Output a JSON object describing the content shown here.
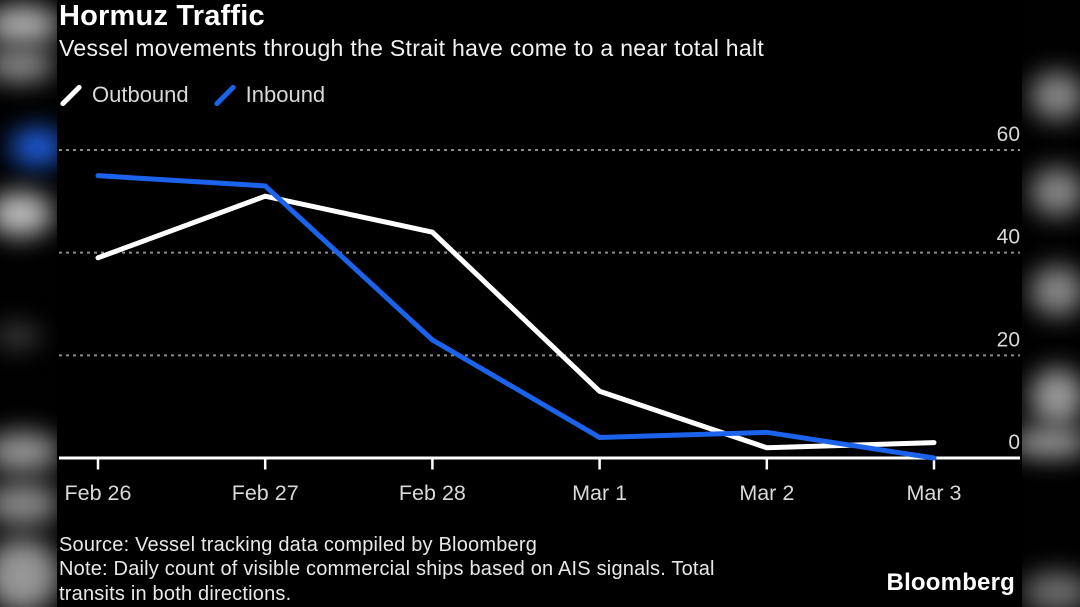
{
  "header": {
    "title": "Hormuz Traffic",
    "subtitle": "Vessel movements through the Strait have come to a near total halt"
  },
  "chart_data": {
    "type": "line",
    "categories": [
      "Feb 26",
      "Feb 27",
      "Feb 28",
      "Mar 1",
      "Mar 2",
      "Mar 3"
    ],
    "series": [
      {
        "name": "Outbound",
        "color": "#ffffff",
        "values": [
          39,
          51,
          44,
          13,
          2,
          3
        ]
      },
      {
        "name": "Inbound",
        "color": "#1b63ea",
        "values": [
          55,
          53,
          23,
          4,
          5,
          0
        ]
      }
    ],
    "ylim": [
      0,
      60
    ],
    "y_ticks": [
      0,
      20,
      40,
      60
    ],
    "grid": "horizontal-dashed",
    "grid_color": "#8c8c8c",
    "axis_color": "#ffffff",
    "tick_label_color": "#d9d9d9",
    "legend_position": "top-left",
    "background_color": "#000000"
  },
  "footer": {
    "source": "Source: Vessel tracking data compiled by Bloomberg",
    "note_lines": [
      "Note: Daily count of visible commercial ships based on AIS signals. Total",
      "transits in both directions."
    ],
    "brand": "Bloomberg"
  }
}
